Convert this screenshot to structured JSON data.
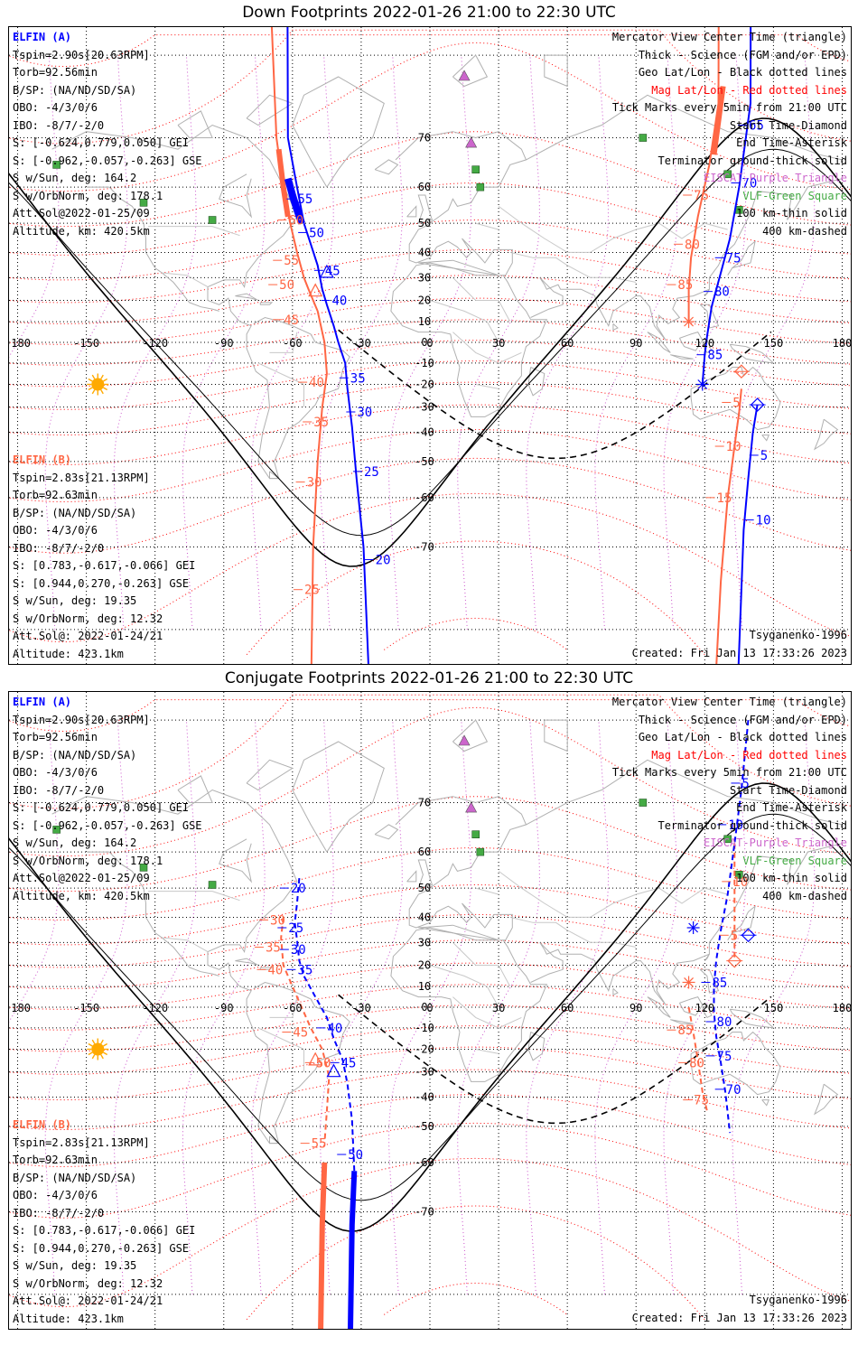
{
  "panels": [
    {
      "title": "Down Footprints 2022-01-26 21:00 to 22:30 UTC",
      "elfin_a": {
        "header": "ELFIN (A)",
        "lines": [
          "Tspin=2.90s[20.63RPM]",
          "Torb=92.56min",
          "B/SP: (NA/ND/SD/SA)",
          "OBO: -4/3/0/6",
          "IBO: -8/7/-2/0",
          "S: [-0.624,0.779,0.050] GEI",
          "S: [-0.962,-0.057,-0.263] GSE",
          "S w/Sun, deg: 164.2",
          "S w/OrbNorm, deg: 178.1",
          "Att.Sol@2022-01-25/09",
          "Altitude, km: 420.5km"
        ]
      },
      "elfin_b": {
        "header": "ELFIN (B)",
        "lines": [
          "Tspin=2.83s[21.13RPM]",
          "Torb=92.63min",
          "B/SP: (NA/ND/SD/SA)",
          "OBO: -4/3/0/6",
          "IBO: -8/7/-2/0",
          "S: [0.783,-0.617,-0.066] GEI",
          "S: [0.944,0.270,-0.263] GSE",
          "S w/Sun, deg: 19.35",
          "S w/OrbNorm, deg: 12.32",
          "Att.Sol@: 2022-01-24/21",
          "Altitude: 423.1km"
        ]
      },
      "model": "Tsyganenko-1996",
      "created": "Created: Fri Jan 13 17:33:26 2023",
      "a_labels": [
        [
          -57,
          57,
          "55"
        ],
        [
          -52,
          47,
          "50"
        ],
        [
          -45,
          33,
          "45"
        ],
        [
          -42,
          20,
          "40"
        ],
        [
          -34,
          -17,
          "35"
        ],
        [
          -31,
          -32,
          "30"
        ],
        [
          -28,
          -53,
          "25"
        ],
        [
          -23,
          -72,
          "20"
        ],
        [
          140,
          72,
          "65"
        ],
        [
          137,
          61,
          "70"
        ],
        [
          130,
          38,
          "75"
        ],
        [
          125,
          24,
          "80"
        ],
        [
          122,
          -6,
          "85"
        ],
        [
          145,
          -48,
          "5"
        ],
        [
          143,
          -65,
          "10"
        ]
      ],
      "b_labels": [
        [
          -61,
          51,
          "60"
        ],
        [
          -63,
          37,
          "55"
        ],
        [
          -65,
          27,
          "50"
        ],
        [
          -63,
          11,
          "45"
        ],
        [
          -52,
          -19,
          "40"
        ],
        [
          -50,
          -36,
          "35"
        ],
        [
          -53,
          -56,
          "30"
        ],
        [
          -54,
          -76,
          "25"
        ],
        [
          116,
          58,
          "75"
        ],
        [
          112,
          43,
          "80"
        ],
        [
          109,
          27,
          "85"
        ],
        [
          133,
          -28,
          "5"
        ],
        [
          130,
          -45,
          "10"
        ],
        [
          126,
          -60,
          "15"
        ]
      ]
    },
    {
      "title": "Conjugate Footprints 2022-01-26 21:00 to 22:30 UTC",
      "elfin_a": {
        "header": "ELFIN (A)",
        "lines": [
          "Tspin=2.90s[20.63RPM]",
          "Torb=92.56min",
          "B/SP: (NA/ND/SD/SA)",
          "OBO: -4/3/0/6",
          "IBO: -8/7/-2/0",
          "S: [-0.624,0.779,0.050] GEI",
          "S: [-0.962,-0.057,-0.263] GSE",
          "S w/Sun, deg: 164.2",
          "S w/OrbNorm, deg: 178.1",
          "Att.Sol@2022-01-25/09",
          "Altitude, km: 420.5km"
        ]
      },
      "elfin_b": {
        "header": "ELFIN (B)",
        "lines": [
          "Tspin=2.83s[21.13RPM]",
          "Torb=92.63min",
          "B/SP: (NA/ND/SD/SA)",
          "OBO: -4/3/0/6",
          "IBO: -8/7/-2/0",
          "S: [0.783,-0.617,-0.066] GEI",
          "S: [0.944,0.270,-0.263] GSE",
          "S w/Sun, deg: 19.35",
          "S w/OrbNorm, deg: 12.32",
          "Att.Sol@: 2022-01-24/21",
          "Altitude: 423.1km"
        ]
      },
      "model": "Tsyganenko-1996",
      "created": "Created: Fri Jan 13 17:33:26 2023",
      "a_labels": [
        [
          -60,
          50,
          "20"
        ],
        [
          -61,
          36,
          "25"
        ],
        [
          -60,
          27,
          "30"
        ],
        [
          -57,
          18,
          "35"
        ],
        [
          -44,
          -10,
          "40"
        ],
        [
          -38,
          -26,
          "45"
        ],
        [
          -35,
          -58,
          "50"
        ],
        [
          137,
          73,
          "5"
        ],
        [
          131,
          66,
          "10"
        ],
        [
          124,
          12,
          "85"
        ],
        [
          126,
          -7,
          "80"
        ],
        [
          126,
          -23,
          "75"
        ],
        [
          130,
          -37,
          "70"
        ]
      ],
      "b_labels": [
        [
          -69,
          39,
          "30"
        ],
        [
          -71,
          28,
          "35"
        ],
        [
          -70,
          18,
          "40"
        ],
        [
          -59,
          -12,
          "45"
        ],
        [
          -49,
          -26,
          "50"
        ],
        [
          -51,
          -55,
          "55"
        ],
        [
          132,
          33,
          "5"
        ],
        [
          133,
          52,
          "10"
        ],
        [
          109,
          -11,
          "85"
        ],
        [
          114,
          -26,
          "80"
        ],
        [
          116,
          -41,
          "75"
        ]
      ]
    }
  ],
  "legend": [
    "Mercator View Center Time (triangle)",
    "Thick - Science (FGM and/or EPD)",
    "Geo Lat/Lon - Black dotted lines",
    "Mag Lat/Lon - Red dotted lines",
    "Tick Marks every 5min from 21:00 UTC",
    "Start Time-Diamond",
    "End Time-Asterisk",
    "Terminator ground-thick solid",
    "EISCAT-Purple Triangle",
    "VLF-Green Square",
    "100 km-thin solid",
    "400 km-dashed"
  ],
  "legend_colors": [
    "#000000",
    "#000000",
    "#000000",
    "#ff0000",
    "#000000",
    "#000000",
    "#000000",
    "#000000",
    "#cc66cc",
    "#44aa44",
    "#000000",
    "#000000"
  ],
  "lon_ticks": [
    "-180",
    "-150",
    "-120",
    "-90",
    "-60",
    "-30",
    "0",
    "30",
    "60",
    "90",
    "120",
    "150",
    "180"
  ],
  "lat_ticks": [
    "70",
    "60",
    "50",
    "40",
    "30",
    "20",
    "10",
    "0",
    "-10",
    "-20",
    "-30",
    "-40",
    "-50",
    "-60",
    "-70"
  ],
  "colors": {
    "elfin_a": "#0000ff",
    "elfin_b": "#ff6644",
    "geo_grid": "#000000",
    "mag_grid": "#ff0000",
    "eiscat": "#cc66cc",
    "vlf": "#44aa44",
    "sun": "#ffaa00"
  }
}
